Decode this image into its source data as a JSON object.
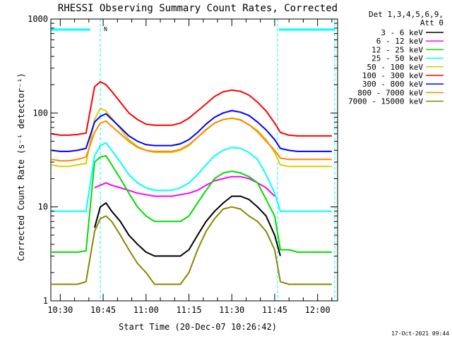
{
  "chart_data": {
    "type": "line",
    "title": "RHESSI Observing Summary Count Rates, Corrected",
    "xlabel": "Start Time (20-Dec-07 10:26:42)",
    "ylabel": "Corrected Count Rate (s⁻¹ detector⁻¹)",
    "y_scale": "log",
    "ylim": [
      1,
      1000
    ],
    "xlim": [
      "10:26:42",
      "12:07:00"
    ],
    "x_ticks": [
      "10:30",
      "10:45",
      "11:00",
      "11:15",
      "11:30",
      "11:45",
      "12:00"
    ],
    "y_ticks": [
      "1",
      "10",
      "100",
      "1000"
    ],
    "legend_header": [
      "Det 1,3,4,5,6,9,",
      "Att 0"
    ],
    "legend_position": "right",
    "footer_date": "17-Oct-2021 09:44",
    "flag_marker": "N",
    "grid": false,
    "x": [
      "10:27",
      "10:30",
      "10:33",
      "10:36",
      "10:39",
      "10:42",
      "10:44",
      "10:46",
      "10:48",
      "10:51",
      "10:54",
      "10:57",
      "11:00",
      "11:03",
      "11:06",
      "11:09",
      "11:12",
      "11:15",
      "11:18",
      "11:21",
      "11:24",
      "11:27",
      "11:30",
      "11:33",
      "11:36",
      "11:39",
      "11:42",
      "11:45",
      "11:47",
      "11:50",
      "11:53",
      "11:56",
      "11:59",
      "12:02",
      "12:05"
    ],
    "series": [
      {
        "name": "3 - 6 keV",
        "color": "#000000",
        "values": [
          null,
          null,
          null,
          null,
          null,
          6,
          10,
          11,
          9,
          7,
          5,
          4,
          3.3,
          3,
          3,
          3,
          3,
          3.5,
          5,
          7,
          9,
          11,
          13,
          13,
          12,
          10,
          8,
          5,
          3,
          null,
          null,
          null,
          null,
          null,
          null
        ]
      },
      {
        "name": "6 - 12 keV",
        "color": "#ff00ff",
        "values": [
          null,
          null,
          null,
          null,
          null,
          16,
          17,
          18,
          17,
          16,
          15,
          14,
          13.5,
          13,
          13,
          13,
          13.5,
          14,
          15,
          17,
          19,
          20,
          21,
          21,
          20,
          18,
          16,
          13,
          null,
          null,
          null,
          null,
          null,
          null,
          null
        ]
      },
      {
        "name": "12 - 25 keV",
        "color": "#00dd00",
        "values": [
          3.3,
          3.3,
          3.3,
          3.3,
          3.4,
          30,
          34,
          35,
          28,
          20,
          14,
          10,
          8,
          7,
          7,
          7,
          7,
          8,
          11,
          15,
          20,
          23,
          24,
          23,
          21,
          18,
          12,
          8,
          3.5,
          3.5,
          3.3,
          3.3,
          3.3,
          3.3,
          3.3
        ]
      },
      {
        "name": "25 - 50 keV",
        "color": "#00ffff",
        "values": [
          9,
          9,
          9,
          9,
          9,
          35,
          45,
          48,
          40,
          30,
          22,
          18,
          16,
          15,
          15,
          15,
          16,
          18,
          22,
          28,
          35,
          40,
          43,
          42,
          38,
          32,
          22,
          14,
          9,
          9,
          9,
          9,
          9,
          9,
          9
        ]
      },
      {
        "name": "50 - 100 keV",
        "color": "#ddcc00",
        "values": [
          28,
          27,
          27,
          28,
          29,
          85,
          112,
          105,
          88,
          68,
          52,
          44,
          40,
          38,
          38,
          38,
          40,
          45,
          55,
          67,
          78,
          85,
          88,
          85,
          75,
          65,
          52,
          38,
          28,
          27,
          27,
          27,
          27,
          27,
          27
        ]
      },
      {
        "name": "100 - 300 keV",
        "color": "#ff0000",
        "values": [
          60,
          58,
          58,
          59,
          61,
          190,
          215,
          200,
          170,
          130,
          100,
          85,
          76,
          74,
          74,
          74,
          78,
          88,
          105,
          125,
          150,
          168,
          175,
          170,
          155,
          130,
          105,
          78,
          62,
          58,
          57,
          57,
          57,
          57,
          57
        ]
      },
      {
        "name": "300 - 800 keV",
        "color": "#0000ff",
        "values": [
          40,
          39,
          39,
          40,
          42,
          80,
          92,
          98,
          86,
          70,
          57,
          50,
          46,
          45,
          45,
          45,
          47,
          52,
          62,
          76,
          90,
          100,
          106,
          102,
          94,
          80,
          66,
          52,
          42,
          40,
          39,
          39,
          39,
          39,
          39
        ]
      },
      {
        "name": "800 - 7000 keV",
        "color": "#ff8800",
        "values": [
          32,
          31,
          31,
          32,
          34,
          62,
          78,
          82,
          72,
          60,
          50,
          43,
          40,
          39,
          39,
          39,
          41,
          46,
          55,
          66,
          78,
          85,
          88,
          84,
          75,
          63,
          50,
          40,
          33,
          32,
          32,
          32,
          32,
          32,
          32
        ]
      },
      {
        "name": "7000 - 15000 keV",
        "color": "#888800",
        "values": [
          1.5,
          1.5,
          1.5,
          1.5,
          1.6,
          5.5,
          7.5,
          8,
          7,
          5,
          3.5,
          2.5,
          2,
          1.5,
          1.5,
          1.5,
          1.5,
          2,
          3.5,
          5.5,
          7.5,
          9.5,
          10,
          9.5,
          8,
          7,
          5.5,
          3.5,
          1.6,
          1.5,
          1.5,
          1.5,
          1.5,
          1.5,
          1.5
        ]
      }
    ],
    "night_periods": [
      [
        "10:26:42",
        "10:40:30"
      ],
      [
        "11:46:30",
        "12:06:00"
      ]
    ],
    "saa_markers": [
      "10:44:00",
      "11:46:00",
      "12:06:00"
    ]
  }
}
